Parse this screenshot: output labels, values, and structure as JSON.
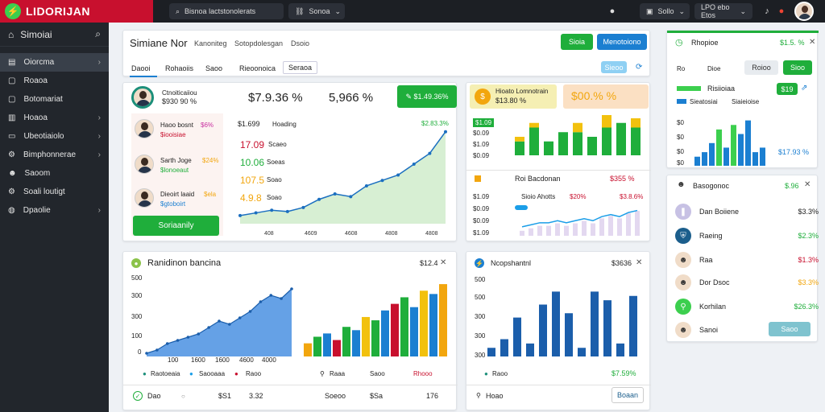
{
  "app": {
    "title": "LIDORIJAN"
  },
  "topbar": {
    "search_label": "Bisnoa lactstonolerats",
    "filter_label": "Sonoa",
    "user_select": "Sollo",
    "region_select": "LPO ebo Etos"
  },
  "sidebar": {
    "title": "Simoiai",
    "items": [
      {
        "label": "Oiorcma",
        "icon": "dashboard-icon",
        "chevron": true
      },
      {
        "label": "Roaoa",
        "icon": "file-icon",
        "chevron": false
      },
      {
        "label": "Botomariat",
        "icon": "document-icon",
        "chevron": false
      },
      {
        "label": "Hoaoa",
        "icon": "chart-icon",
        "chevron": true
      },
      {
        "label": "Ubeotiaiolo",
        "icon": "folder-icon",
        "chevron": true
      },
      {
        "label": "Bimphonnerae",
        "icon": "settings-icon",
        "chevron": true
      },
      {
        "label": "Saoom",
        "icon": "user-icon",
        "chevron": false
      },
      {
        "label": "Soali loutigt",
        "icon": "gear-icon",
        "chevron": false
      },
      {
        "label": "Dpaolie",
        "icon": "globe-icon",
        "chevron": true
      }
    ]
  },
  "main_header": {
    "title": "Simiane Nor",
    "sub1": "Kanoniteg",
    "sub2": "Sotopdolesgan",
    "sub3": "Dsoio",
    "btn_green": "Sioia",
    "btn_blue": "Menotoiono",
    "tabs": [
      "Daooi",
      "Rohaoiis",
      "Saoo",
      "Rieoonoica",
      "Seraoa"
    ],
    "btn_small": "Sieoo"
  },
  "summary": {
    "profile_name": "Ctnoiticaiiou",
    "profile_value": "$930 90 %",
    "big1": "$7.9.36 %",
    "big2": "5,966 %",
    "btn": "$1.49.36%",
    "people": [
      {
        "name": "Haoo bosnt",
        "pct": "$6%",
        "sub": "$iooisiae"
      },
      {
        "name": "Sarth Joge",
        "pct": "$24%",
        "sub": "$lonoeaut"
      },
      {
        "name": "Dieoirt laaid",
        "pct": "$ela",
        "sub": "$gtoboirt"
      }
    ],
    "action": "Soriaanily",
    "values": [
      {
        "v": "$1.699",
        "l": "Hoading",
        "pct": "$2.83.3%"
      },
      {
        "v": "17.09",
        "l": "Scaeo"
      },
      {
        "v": "10.06",
        "l": "Soeas"
      },
      {
        "v": "107.5",
        "l": "Soao"
      },
      {
        "v": "4.9.8",
        "l": "Soao"
      }
    ],
    "x_labels": [
      "408",
      "4609",
      "4608",
      "4808",
      "4808"
    ]
  },
  "mini_chart": {
    "head1": "Hioato Lomnotrain",
    "head1_val": "$13.80 %",
    "head2": "$00.% %",
    "rows": [
      "$1.09",
      "$0.09",
      "$1.09",
      "$0.09"
    ],
    "bars_title": "Roi Bacdonan",
    "bars_value": "$355 %",
    "label": "Sioio Ahotts",
    "label_pct": "$20%",
    "label_val": "$3.8.6%",
    "row_labels": [
      "$1.09",
      "$0.09",
      "$0.09",
      "$1.09"
    ]
  },
  "right_top": {
    "title": "Rhopioe",
    "value": "$1.5. %",
    "links": [
      "Ro",
      "Dioe"
    ],
    "btn_light": "Roioo",
    "btn_green": "Sioo",
    "sub_title": "Risiioiaa",
    "sub_badge": "$19",
    "list": [
      "Sieatosiai",
      "Siaieioise"
    ],
    "ylabels": [
      "$0",
      "$0",
      "$0",
      "$0"
    ],
    "value2": "$17.93 %"
  },
  "right_list": {
    "title": "Basogonoc",
    "title_pct": "$.96",
    "rows": [
      {
        "name": "Dan Boiiene",
        "val": "$3.3%",
        "color": "#c7c1e4"
      },
      {
        "name": "Raeing",
        "val": "$2.3%",
        "color": "#1b5e8c"
      },
      {
        "name": "Raa",
        "val": "$1.3%",
        "color": "#f0dcc8"
      },
      {
        "name": "Dor Dsoc",
        "val": "$3.3%",
        "color": "#f0dcc8"
      },
      {
        "name": "Korhilan",
        "val": "$26.3%",
        "color": "#3ccf4e"
      },
      {
        "name": "Sanoi",
        "val": "",
        "color": "#f0dcc8"
      }
    ],
    "btn": "Saoo"
  },
  "bottom_left": {
    "title": "Ranidinon bancina",
    "value": "$12.4",
    "y_labels": [
      "500",
      "300",
      "300",
      "100",
      "0"
    ],
    "x_labels": [
      "100",
      "1600",
      "1600",
      "4600",
      "4000"
    ],
    "legend": [
      "Raotoeaia",
      "Saooaaa",
      "Raoo"
    ],
    "legend2": [
      "Raaa",
      "Saoo",
      "Rhooo"
    ],
    "footer": [
      "Dao",
      "$S1",
      "3.32",
      "Soeoo",
      "$Sa",
      "176"
    ]
  },
  "bottom_mid": {
    "title": "Ncopshantnl",
    "value": "$3636",
    "y_labels": [
      "500",
      "500",
      "300",
      "300",
      "300"
    ],
    "legend": "Raoo",
    "legend_val": "$7.59%",
    "footer_left": "Hoao",
    "btn": "Boaan"
  },
  "chart_data": [
    {
      "type": "area",
      "title": "",
      "x": [
        1,
        2,
        3,
        4,
        5,
        6,
        7,
        8,
        9,
        10,
        11,
        12,
        13,
        14
      ],
      "values": [
        6,
        8,
        10,
        9,
        12,
        18,
        22,
        20,
        28,
        32,
        36,
        44,
        52,
        68
      ],
      "categories": [
        "408",
        "4609",
        "4608",
        "4808",
        "4808"
      ]
    },
    {
      "type": "bar",
      "title": "",
      "series": [
        {
          "values": [
            3,
            6,
            3,
            5,
            5,
            4,
            6,
            7,
            6
          ],
          "color": "#1fae3b"
        },
        {
          "values": [
            1,
            1,
            0,
            0,
            2,
            0,
            3,
            0,
            2
          ],
          "color": "#f2c10e"
        }
      ]
    },
    {
      "type": "line",
      "title": "",
      "values": [
        2,
        3,
        4,
        4,
        5,
        4,
        5,
        6,
        5,
        7,
        8,
        7,
        9,
        10
      ]
    },
    {
      "type": "bar",
      "title": "",
      "values": [
        2,
        3,
        5,
        8,
        4,
        9,
        7,
        10,
        3,
        4
      ],
      "colors": [
        "#1b7fd1",
        "#1b7fd1",
        "#1b7fd1",
        "#3ccf4e",
        "#1b7fd1",
        "#3ccf4e",
        "#1b7fd1",
        "#1b7fd1",
        "#1b7fd1",
        "#1b7fd1"
      ]
    },
    {
      "type": "area",
      "title": "",
      "y_labels": [
        "500",
        "300",
        "300",
        "100",
        "0"
      ],
      "values": [
        2,
        4,
        8,
        10,
        12,
        14,
        18,
        22,
        20,
        24,
        28,
        34,
        38,
        36,
        42
      ]
    },
    {
      "type": "bar",
      "title": "",
      "categories": [
        "1",
        "2",
        "3",
        "4",
        "5",
        "6",
        "7",
        "8",
        "9",
        "10",
        "11",
        "12",
        "13",
        "14",
        "15"
      ],
      "series": [
        {
          "values": [
            4,
            6,
            7,
            5,
            9,
            8,
            12,
            11,
            14,
            16,
            18,
            15,
            20,
            19,
            22
          ]
        }
      ],
      "colors": [
        "#f2a60e",
        "#1fae3b",
        "#1b7fd1",
        "#c8102e",
        "#1fae3b",
        "#1b7fd1",
        "#f2c10e",
        "#1fae3b",
        "#1b7fd1",
        "#c8102e",
        "#1fae3b",
        "#1b7fd1",
        "#f2c10e",
        "#1b7fd1",
        "#f2a60e"
      ]
    },
    {
      "type": "bar",
      "title": "",
      "y_labels": [
        "500",
        "500",
        "300",
        "300",
        "300"
      ],
      "values": [
        2,
        4,
        9,
        3,
        12,
        15,
        10,
        2,
        15,
        13,
        3,
        14
      ],
      "color": "#1b5eab"
    }
  ]
}
